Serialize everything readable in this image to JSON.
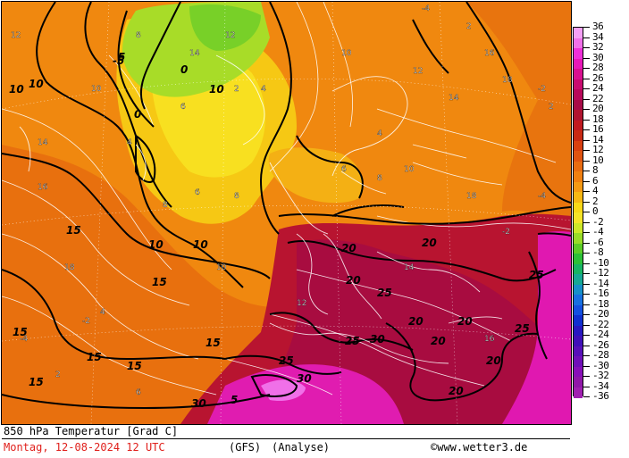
{
  "title": "850 hPa Temperatur [Grad C]",
  "date": "Montag, 12-08-2024  12 UTC",
  "model": "(GFS)",
  "mode": "(Analyse)",
  "copyright": "©www.wetter3.de",
  "legend": {
    "labels": [
      "36",
      "34",
      "32",
      "30",
      "28",
      "26",
      "24",
      "22",
      "20",
      "18",
      "16",
      "14",
      "12",
      "10",
      "8",
      "6",
      "4",
      "2",
      "0",
      "-2",
      "-4",
      "-6",
      "-8",
      "-10",
      "-12",
      "-14",
      "-16",
      "-18",
      "-20",
      "-22",
      "-24",
      "-26",
      "-28",
      "-30",
      "-32",
      "-34",
      "-36"
    ],
    "colors": [
      "#f4a0f4",
      "#f070e8",
      "#ee30d8",
      "#e818b8",
      "#d81090",
      "#c80c70",
      "#b8085a",
      "#a80c48",
      "#b01430",
      "#c01a20",
      "#c82a14",
      "#d84010",
      "#e05410",
      "#e86c10",
      "#f08010",
      "#f49a14",
      "#f6b814",
      "#f8d818",
      "#f4e428",
      "#cce828",
      "#98dc28",
      "#5ccc28",
      "#2cc038",
      "#18b464",
      "#18a894",
      "#1890c8",
      "#1870e0",
      "#1450e0",
      "#1030d0",
      "#2818c0",
      "#4010b8",
      "#5810b8",
      "#7010b8",
      "#8810b8",
      "#9018a8",
      "#a020b0"
    ]
  },
  "bold_labels": [
    {
      "t": "10",
      "c": "black"
    },
    {
      "t": "10",
      "c": "black"
    },
    {
      "t": "15",
      "c": "black"
    },
    {
      "t": "15",
      "c": "black"
    },
    {
      "t": "15",
      "c": "black"
    },
    {
      "t": "15",
      "c": "black"
    },
    {
      "t": "15",
      "c": "black"
    },
    {
      "t": "15",
      "c": "black"
    },
    {
      "t": "20",
      "c": "black"
    },
    {
      "t": "20",
      "c": "black"
    },
    {
      "t": "20",
      "c": "black"
    },
    {
      "t": "20",
      "c": "black"
    },
    {
      "t": "20",
      "c": "black"
    },
    {
      "t": "20",
      "c": "black"
    },
    {
      "t": "20",
      "c": "black"
    },
    {
      "t": "25",
      "c": "black"
    },
    {
      "t": "25",
      "c": "black"
    },
    {
      "t": "25",
      "c": "black"
    },
    {
      "t": "25",
      "c": "black"
    },
    {
      "t": "30",
      "c": "black"
    },
    {
      "t": "30",
      "c": "black"
    },
    {
      "t": "30",
      "c": "black"
    },
    {
      "t": "5",
      "c": "black"
    },
    {
      "t": "5",
      "c": "black"
    },
    {
      "t": "0",
      "c": "black"
    },
    {
      "t": "0",
      "c": "black"
    },
    {
      "t": "-5",
      "c": "black"
    },
    {
      "t": "10",
      "c": "black"
    },
    {
      "t": "10",
      "c": "black"
    },
    {
      "t": "10",
      "c": "black"
    },
    {
      "t": "15",
      "c": "black"
    },
    {
      "t": "20",
      "c": "black"
    },
    {
      "t": "25",
      "c": "black"
    }
  ],
  "small_labels": [
    "2",
    "4",
    "6",
    "8",
    "10",
    "12",
    "14",
    "16",
    "18",
    "-2",
    "-4"
  ]
}
